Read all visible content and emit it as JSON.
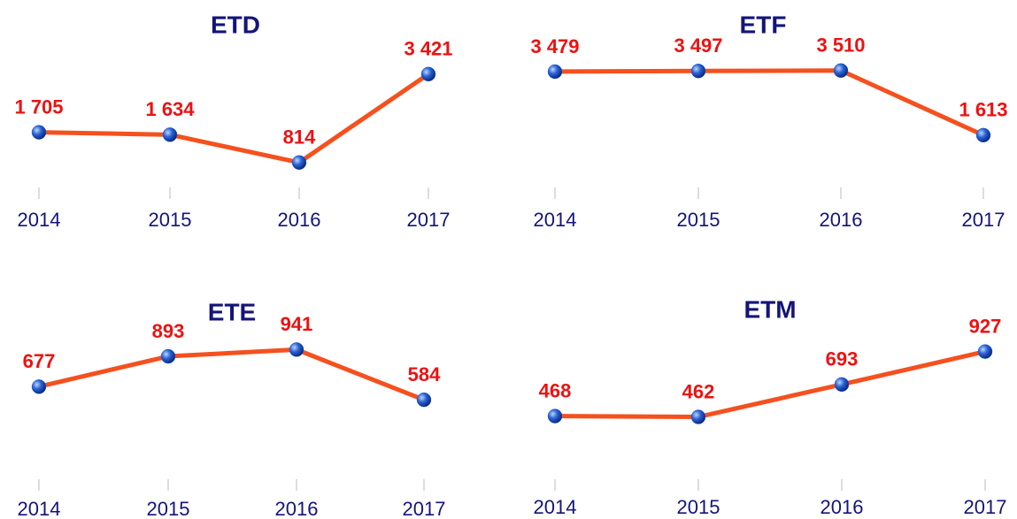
{
  "chart_data": [
    {
      "type": "line",
      "title": "ETD",
      "categories": [
        "2014",
        "2015",
        "2016",
        "2017"
      ],
      "values": [
        1705,
        1634,
        814,
        3421
      ],
      "value_labels": [
        "1 705",
        "1 634",
        "814",
        "3 421"
      ],
      "color": "#f5501e",
      "marker_color": "#1f5fd0",
      "ylim": [
        0,
        4000
      ]
    },
    {
      "type": "line",
      "title": "ETF",
      "categories": [
        "2014",
        "2015",
        "2016",
        "2017"
      ],
      "values": [
        3479,
        3497,
        3510,
        1613
      ],
      "value_labels": [
        "3 479",
        "3 497",
        "3 510",
        "1 613"
      ],
      "color": "#f5501e",
      "marker_color": "#1f5fd0",
      "ylim": [
        0,
        4000
      ]
    },
    {
      "type": "line",
      "title": "ETE",
      "categories": [
        "2014",
        "2015",
        "2016",
        "2017"
      ],
      "values": [
        677,
        893,
        941,
        584
      ],
      "color": "#f5501e",
      "marker_color": "#1f5fd0",
      "ylim": [
        0,
        1000
      ]
    },
    {
      "type": "line",
      "title": "ETM",
      "categories": [
        "2014",
        "2015",
        "2016",
        "2017"
      ],
      "values": [
        468,
        462,
        693,
        927
      ],
      "color": "#f5501e",
      "marker_color": "#1f5fd0",
      "ylim": [
        0,
        1000
      ]
    }
  ]
}
